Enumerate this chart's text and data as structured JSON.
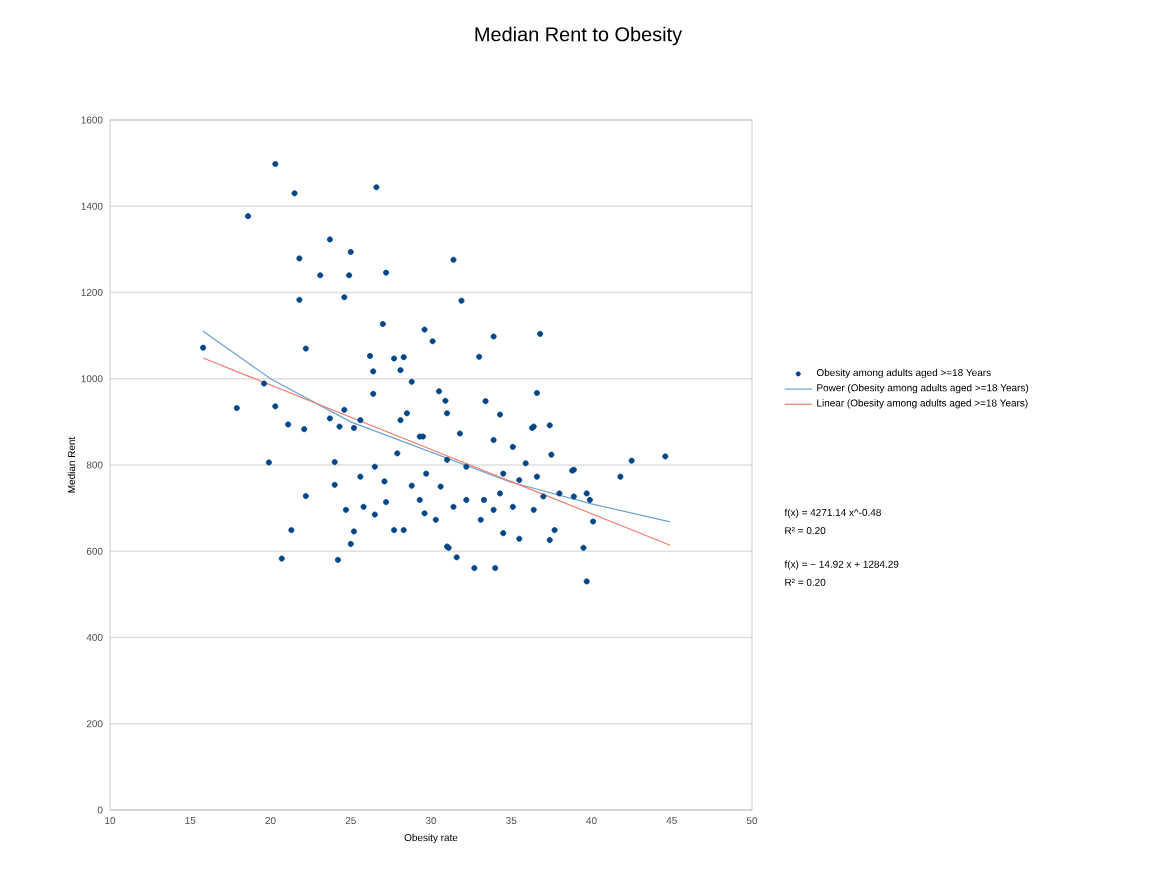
{
  "chart_data": {
    "type": "scatter",
    "title": "Median Rent to Obesity",
    "xlabel": "Obesity rate",
    "ylabel": "Median Rent",
    "xlim": [
      10,
      50
    ],
    "xticks": [
      10,
      15,
      20,
      25,
      30,
      35,
      40,
      45,
      50
    ],
    "ylim": [
      0,
      1600
    ],
    "yticks": [
      0,
      200,
      400,
      600,
      800,
      1000,
      1200,
      1400,
      1600
    ],
    "grid": "y",
    "legend": "right",
    "line_style": "solid",
    "series": [
      {
        "name": "Obesity among adults aged >=18 Years",
        "color": "#004586",
        "marker": "circle",
        "x": [
          15.8,
          18.6,
          20.3,
          21.5,
          21.8,
          21.8,
          22.2,
          23.1,
          23.7,
          25.0,
          24.9,
          24.6,
          26.6,
          27.2,
          27.0,
          31.4,
          17.9,
          19.6,
          20.3,
          19.9,
          21.1,
          22.1,
          26.2,
          26.4,
          26.4,
          27.7,
          28.3,
          28.1,
          28.8,
          29.6,
          30.1,
          30.5,
          30.9,
          23.7,
          24.6,
          25.2,
          24.0,
          31.9,
          33.9,
          36.8,
          33.0,
          36.6,
          33.4,
          34.3,
          36.3,
          37.4,
          44.6,
          42.5,
          38.8,
          41.8,
          20.7,
          21.3,
          22.2,
          24.2,
          25.0,
          25.2,
          24.7,
          24.0,
          25.8,
          26.5,
          27.7,
          28.3,
          27.2,
          27.1,
          28.8,
          29.3,
          29.6,
          30.3,
          31.1,
          31.6,
          25.6,
          26.5,
          27.9,
          29.3,
          24.3,
          25.6,
          28.5,
          39.7,
          32.7,
          34.0,
          31.0,
          39.5,
          40.1,
          37.4,
          35.5,
          34.5,
          37.7,
          33.1,
          33.9,
          33.3,
          34.3,
          32.2,
          31.4,
          35.1,
          36.4,
          37.0,
          38.0,
          38.9,
          39.7,
          39.9,
          38.9,
          37.5,
          36.6,
          35.5,
          34.5,
          32.2,
          31.0,
          29.7,
          30.6,
          35.9,
          35.1,
          33.9,
          36.4,
          31.8,
          29.5,
          28.1,
          31.0
        ],
        "values": [
          1072,
          1377,
          1498,
          1430,
          1279,
          1183,
          1070,
          1240,
          1323,
          1294,
          1240,
          1189,
          1444,
          1246,
          1127,
          1276,
          932,
          989,
          936,
          806,
          894,
          883,
          1053,
          1017,
          965,
          1047,
          1050,
          1020,
          993,
          1114,
          1087,
          971,
          949,
          908,
          928,
          886,
          807,
          1181,
          1098,
          1104,
          1051,
          967,
          948,
          917,
          886,
          892,
          820,
          810,
          787,
          773,
          583,
          649,
          728,
          580,
          617,
          646,
          696,
          754,
          703,
          685,
          649,
          649,
          714,
          762,
          752,
          719,
          688,
          673,
          608,
          586,
          773,
          796,
          827,
          866,
          889,
          904,
          920,
          530,
          561,
          561,
          611,
          608,
          669,
          626,
          629,
          642,
          649,
          673,
          696,
          719,
          734,
          719,
          703,
          703,
          696,
          727,
          734,
          727,
          734,
          719,
          789,
          824,
          773,
          765,
          780,
          796,
          812,
          780,
          750,
          804,
          842,
          858,
          889,
          873,
          866,
          904,
          920
        ]
      },
      {
        "type": "line",
        "name": "Power (Obesity among adults aged >=18 Years)",
        "color": "#6f9fd0",
        "marker": "none",
        "x": [
          15.8,
          20,
          25,
          30,
          35,
          40,
          44.9
        ],
        "values": [
          1110,
          1000,
          900,
          830,
          760,
          710,
          668
        ]
      },
      {
        "type": "line",
        "name": "Linear (Obesity among adults aged >=18 Years)",
        "color": "#f08070",
        "marker": "none",
        "x": [
          15.8,
          44.9
        ],
        "values": [
          1048,
          614
        ]
      }
    ],
    "annotations": [
      "f(x) = 4271.14 x^-0.48",
      "R² = 0.20",
      "f(x) = − 14.92 x + 1284.29",
      "R² = 0.20"
    ]
  }
}
